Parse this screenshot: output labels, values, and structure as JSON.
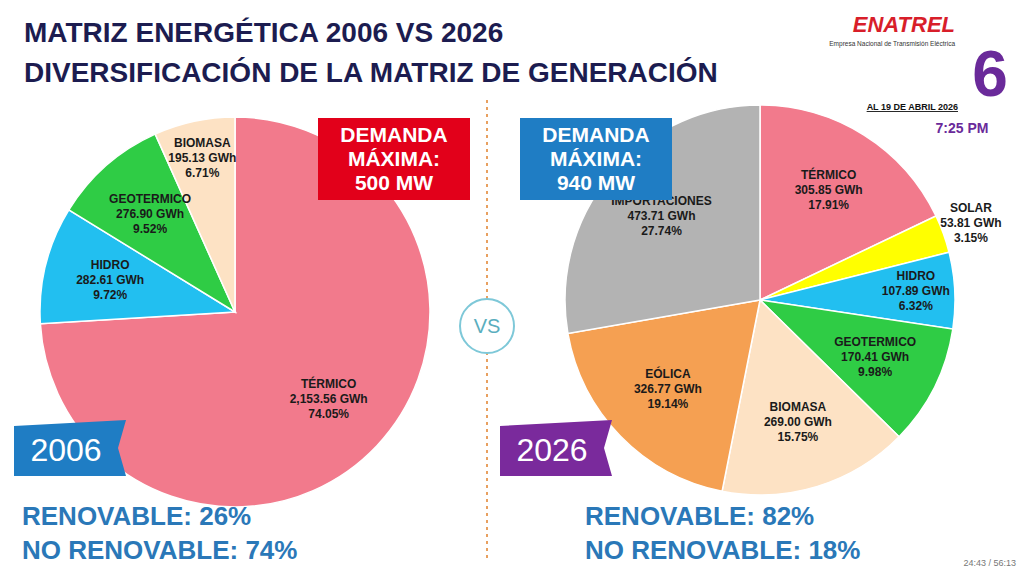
{
  "header": {
    "title": [
      "MATRIZ ENERGÉTICA 2006 VS 2026",
      "DIVERSIFICACIÓN DE LA MATRIZ DE GENERACIÓN"
    ]
  },
  "logo": {
    "name": "ENATREL",
    "subtitle": "Empresa Nacional de Transmisión Eléctrica",
    "date": "AL 19 DE ABRIL 2026"
  },
  "channel": {
    "number": "6",
    "time": "7:25 PM"
  },
  "divider_label": "VS",
  "video_time": "24:43 / 56:13",
  "chart_data": [
    {
      "type": "pie",
      "title": "2006",
      "categories": [
        "TÉRMICO",
        "HIDRO",
        "GEOTERMICO",
        "BIOMASA"
      ],
      "values": [
        74.05,
        9.72,
        9.52,
        6.71
      ],
      "value_labels": [
        "74.05%",
        "9.72%",
        "9.52%",
        "6.71%"
      ],
      "energy_labels": [
        "2,153.56 GWh",
        "282.61 GWh",
        "276.90 GWh",
        "195.13 GWh"
      ],
      "colors": [
        "#f27a8c",
        "#22bff0",
        "#2fcc45",
        "#fde2c4"
      ],
      "data_labels": true,
      "annotation": [
        "DEMANDA",
        "MÁXIMA:",
        "500 MW"
      ],
      "footer": [
        "RENOVABLE: 26%",
        "NO RENOVABLE: 74%"
      ]
    },
    {
      "type": "pie",
      "title": "2026",
      "categories": [
        "TÉRMICO",
        "SOLAR",
        "HIDRO",
        "GEOTERMICO",
        "BIOMASA",
        "EÓLICA",
        "IMPORTACIONES"
      ],
      "values": [
        17.91,
        3.15,
        6.32,
        9.98,
        15.75,
        19.14,
        27.74
      ],
      "value_labels": [
        "17.91%",
        "3.15%",
        "6.32%",
        "9.98%",
        "15.75%",
        "19.14%",
        "27.74%"
      ],
      "energy_labels": [
        "305.85 GWh",
        "53.81 GWh",
        "107.89 GWh",
        "170.41 GWh",
        "269.00 GWh",
        "326.77 GWh",
        "473.71 GWh"
      ],
      "colors": [
        "#f27a8c",
        "#ffff00",
        "#22bff0",
        "#2fcc45",
        "#fde2c4",
        "#f5a052",
        "#b3b3b3"
      ],
      "data_labels": true,
      "annotation": [
        "DEMANDA",
        "MÁXIMA:",
        "940 MW"
      ],
      "footer": [
        "RENOVABLE: 82%",
        "NO RENOVABLE: 18%"
      ]
    }
  ]
}
